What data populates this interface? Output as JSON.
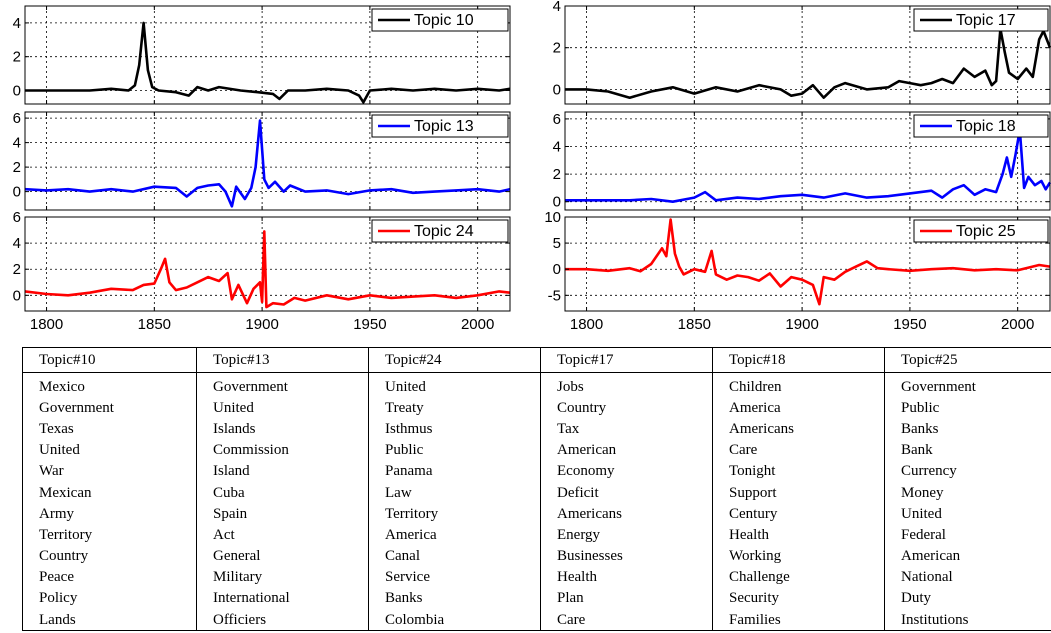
{
  "x_tick_labels": [
    "1800",
    "1850",
    "1900",
    "1950",
    "2000"
  ],
  "chart_data": [
    {
      "type": "line",
      "series": [
        {
          "name": "Topic 10",
          "color": "#000000",
          "points": [
            [
              1790,
              0
            ],
            [
              1800,
              0
            ],
            [
              1810,
              0
            ],
            [
              1820,
              0
            ],
            [
              1830,
              0.1
            ],
            [
              1838,
              0
            ],
            [
              1841,
              0.3
            ],
            [
              1843,
              1.5
            ],
            [
              1845,
              4.0
            ],
            [
              1847,
              1.2
            ],
            [
              1849,
              0.2
            ],
            [
              1852,
              0
            ],
            [
              1860,
              -0.1
            ],
            [
              1866,
              -0.3
            ],
            [
              1870,
              0.2
            ],
            [
              1875,
              0
            ],
            [
              1880,
              0.2
            ],
            [
              1890,
              0
            ],
            [
              1898,
              -0.1
            ],
            [
              1905,
              -0.2
            ],
            [
              1908,
              -0.5
            ],
            [
              1912,
              0
            ],
            [
              1920,
              0
            ],
            [
              1930,
              0.1
            ],
            [
              1940,
              0
            ],
            [
              1945,
              -0.3
            ],
            [
              1947,
              -0.7
            ],
            [
              1950,
              0
            ],
            [
              1960,
              0.1
            ],
            [
              1970,
              0
            ],
            [
              1980,
              0.1
            ],
            [
              1990,
              0
            ],
            [
              2000,
              0.1
            ],
            [
              2010,
              0
            ],
            [
              2015,
              0.1
            ]
          ]
        }
      ],
      "yticks": [
        0,
        2,
        4
      ],
      "ylim": [
        -0.8,
        5.0
      ],
      "xlim": [
        1790,
        2015
      ]
    },
    {
      "type": "line",
      "series": [
        {
          "name": "Topic 13",
          "color": "#0000ff",
          "points": [
            [
              1790,
              0.2
            ],
            [
              1800,
              0.1
            ],
            [
              1810,
              0.2
            ],
            [
              1820,
              0
            ],
            [
              1830,
              0.2
            ],
            [
              1840,
              0
            ],
            [
              1850,
              0.4
            ],
            [
              1860,
              0.3
            ],
            [
              1865,
              -0.4
            ],
            [
              1870,
              0.3
            ],
            [
              1875,
              0.5
            ],
            [
              1880,
              0.6
            ],
            [
              1883,
              0
            ],
            [
              1886,
              -1.2
            ],
            [
              1888,
              0.4
            ],
            [
              1892,
              -0.6
            ],
            [
              1895,
              0.3
            ],
            [
              1897,
              2.0
            ],
            [
              1899,
              5.8
            ],
            [
              1901,
              1.0
            ],
            [
              1903,
              0.3
            ],
            [
              1906,
              0.8
            ],
            [
              1910,
              0
            ],
            [
              1913,
              0.5
            ],
            [
              1920,
              0
            ],
            [
              1930,
              0.1
            ],
            [
              1940,
              -0.2
            ],
            [
              1950,
              0.1
            ],
            [
              1960,
              0.2
            ],
            [
              1970,
              -0.1
            ],
            [
              1980,
              0
            ],
            [
              1990,
              0.1
            ],
            [
              2000,
              0.2
            ],
            [
              2010,
              0
            ],
            [
              2015,
              0.2
            ]
          ]
        }
      ],
      "yticks": [
        0,
        2,
        4,
        6
      ],
      "ylim": [
        -1.5,
        6.5
      ],
      "xlim": [
        1790,
        2015
      ]
    },
    {
      "type": "line",
      "series": [
        {
          "name": "Topic 24",
          "color": "#ff0000",
          "points": [
            [
              1790,
              0.3
            ],
            [
              1800,
              0.1
            ],
            [
              1810,
              0
            ],
            [
              1820,
              0.2
            ],
            [
              1830,
              0.5
            ],
            [
              1840,
              0.4
            ],
            [
              1845,
              0.8
            ],
            [
              1850,
              0.9
            ],
            [
              1853,
              2.0
            ],
            [
              1855,
              2.8
            ],
            [
              1857,
              1.0
            ],
            [
              1860,
              0.4
            ],
            [
              1865,
              0.6
            ],
            [
              1870,
              1.0
            ],
            [
              1875,
              1.4
            ],
            [
              1880,
              1.1
            ],
            [
              1884,
              1.7
            ],
            [
              1886,
              -0.3
            ],
            [
              1889,
              0.8
            ],
            [
              1893,
              -0.6
            ],
            [
              1896,
              0.5
            ],
            [
              1899,
              1.0
            ],
            [
              1900,
              -0.5
            ],
            [
              1901,
              4.9
            ],
            [
              1902,
              -0.9
            ],
            [
              1905,
              -0.6
            ],
            [
              1910,
              -0.7
            ],
            [
              1915,
              -0.2
            ],
            [
              1920,
              -0.4
            ],
            [
              1930,
              0
            ],
            [
              1940,
              -0.3
            ],
            [
              1950,
              0
            ],
            [
              1960,
              -0.2
            ],
            [
              1970,
              -0.1
            ],
            [
              1980,
              0
            ],
            [
              1990,
              -0.2
            ],
            [
              2000,
              0
            ],
            [
              2010,
              0.3
            ],
            [
              2015,
              0.2
            ]
          ]
        }
      ],
      "yticks": [
        0,
        2,
        4,
        6
      ],
      "ylim": [
        -1.2,
        6.0
      ],
      "xlim": [
        1790,
        2015
      ]
    },
    {
      "type": "line",
      "series": [
        {
          "name": "Topic 17",
          "color": "#000000",
          "points": [
            [
              1790,
              0
            ],
            [
              1800,
              0
            ],
            [
              1810,
              -0.1
            ],
            [
              1820,
              -0.4
            ],
            [
              1830,
              -0.1
            ],
            [
              1840,
              0.1
            ],
            [
              1850,
              -0.2
            ],
            [
              1860,
              0.1
            ],
            [
              1870,
              -0.1
            ],
            [
              1880,
              0.2
            ],
            [
              1890,
              0
            ],
            [
              1895,
              -0.3
            ],
            [
              1900,
              -0.2
            ],
            [
              1905,
              0.2
            ],
            [
              1910,
              -0.4
            ],
            [
              1915,
              0.1
            ],
            [
              1920,
              0.3
            ],
            [
              1930,
              0
            ],
            [
              1940,
              0.1
            ],
            [
              1945,
              0.4
            ],
            [
              1950,
              0.3
            ],
            [
              1955,
              0.2
            ],
            [
              1960,
              0.3
            ],
            [
              1965,
              0.5
            ],
            [
              1970,
              0.3
            ],
            [
              1975,
              1.0
            ],
            [
              1980,
              0.6
            ],
            [
              1985,
              0.9
            ],
            [
              1988,
              0.2
            ],
            [
              1990,
              0.4
            ],
            [
              1992,
              2.9
            ],
            [
              1994,
              1.8
            ],
            [
              1996,
              0.8
            ],
            [
              2000,
              0.5
            ],
            [
              2004,
              1.0
            ],
            [
              2007,
              0.6
            ],
            [
              2010,
              2.4
            ],
            [
              2012,
              2.8
            ],
            [
              2015,
              2.0
            ]
          ]
        }
      ],
      "yticks": [
        0,
        2,
        4
      ],
      "ylim": [
        -0.7,
        4.0
      ],
      "xlim": [
        1790,
        2015
      ]
    },
    {
      "type": "line",
      "series": [
        {
          "name": "Topic 18",
          "color": "#0000ff",
          "points": [
            [
              1790,
              0.1
            ],
            [
              1800,
              0.1
            ],
            [
              1810,
              0.1
            ],
            [
              1820,
              0.1
            ],
            [
              1830,
              0.2
            ],
            [
              1840,
              0
            ],
            [
              1850,
              0.3
            ],
            [
              1855,
              0.7
            ],
            [
              1860,
              0.1
            ],
            [
              1870,
              0.3
            ],
            [
              1880,
              0.2
            ],
            [
              1890,
              0.4
            ],
            [
              1900,
              0.5
            ],
            [
              1910,
              0.3
            ],
            [
              1920,
              0.6
            ],
            [
              1930,
              0.3
            ],
            [
              1940,
              0.4
            ],
            [
              1950,
              0.6
            ],
            [
              1960,
              0.8
            ],
            [
              1965,
              0.3
            ],
            [
              1970,
              0.9
            ],
            [
              1975,
              1.2
            ],
            [
              1980,
              0.5
            ],
            [
              1985,
              0.9
            ],
            [
              1990,
              0.7
            ],
            [
              1993,
              2.0
            ],
            [
              1995,
              3.2
            ],
            [
              1997,
              1.8
            ],
            [
              1999,
              3.4
            ],
            [
              2001,
              5.2
            ],
            [
              2003,
              1.0
            ],
            [
              2005,
              1.8
            ],
            [
              2008,
              1.2
            ],
            [
              2011,
              1.5
            ],
            [
              2013,
              0.9
            ],
            [
              2015,
              1.4
            ]
          ]
        }
      ],
      "yticks": [
        0,
        2,
        4,
        6
      ],
      "ylim": [
        -0.6,
        6.5
      ],
      "xlim": [
        1790,
        2015
      ]
    },
    {
      "type": "line",
      "series": [
        {
          "name": "Topic 25",
          "color": "#ff0000",
          "points": [
            [
              1790,
              0
            ],
            [
              1800,
              0
            ],
            [
              1810,
              -0.3
            ],
            [
              1820,
              0.2
            ],
            [
              1825,
              -0.4
            ],
            [
              1830,
              1.0
            ],
            [
              1835,
              4.0
            ],
            [
              1837,
              2.5
            ],
            [
              1839,
              9.5
            ],
            [
              1841,
              3.0
            ],
            [
              1843,
              0.5
            ],
            [
              1845,
              -1.0
            ],
            [
              1850,
              0
            ],
            [
              1855,
              -0.5
            ],
            [
              1858,
              3.5
            ],
            [
              1860,
              -1.0
            ],
            [
              1865,
              -2.0
            ],
            [
              1870,
              -1.2
            ],
            [
              1875,
              -1.5
            ],
            [
              1880,
              -2.2
            ],
            [
              1885,
              -0.8
            ],
            [
              1890,
              -3.3
            ],
            [
              1895,
              -1.5
            ],
            [
              1900,
              -2.0
            ],
            [
              1905,
              -3.0
            ],
            [
              1908,
              -6.7
            ],
            [
              1910,
              -1.5
            ],
            [
              1915,
              -2.0
            ],
            [
              1920,
              -0.5
            ],
            [
              1925,
              0.5
            ],
            [
              1930,
              1.5
            ],
            [
              1935,
              0.2
            ],
            [
              1940,
              0
            ],
            [
              1950,
              -0.3
            ],
            [
              1960,
              0
            ],
            [
              1970,
              0.2
            ],
            [
              1980,
              -0.2
            ],
            [
              1990,
              0
            ],
            [
              2000,
              -0.2
            ],
            [
              2010,
              0.8
            ],
            [
              2015,
              0.5
            ]
          ]
        }
      ],
      "yticks": [
        -5,
        0,
        5,
        10
      ],
      "ylim": [
        -8,
        10
      ],
      "xlim": [
        1790,
        2015
      ]
    }
  ],
  "table": {
    "headers": [
      "Topic#10",
      "Topic#13",
      "Topic#24",
      "Topic#17",
      "Topic#18",
      "Topic#25"
    ],
    "rows": [
      [
        "Mexico",
        "Government",
        "United",
        "Jobs",
        "Children",
        "Government"
      ],
      [
        "Government",
        "United",
        "Treaty",
        "Country",
        "America",
        "Public"
      ],
      [
        "Texas",
        "Islands",
        "Isthmus",
        "Tax",
        "Americans",
        "Banks"
      ],
      [
        "United",
        "Commission",
        "Public",
        "American",
        "Care",
        "Bank"
      ],
      [
        "War",
        "Island",
        "Panama",
        "Economy",
        "Tonight",
        "Currency"
      ],
      [
        "Mexican",
        "Cuba",
        "Law",
        "Deficit",
        "Support",
        "Money"
      ],
      [
        "Army",
        "Spain",
        "Territory",
        "Americans",
        "Century",
        "United"
      ],
      [
        "Territory",
        "Act",
        "America",
        "Energy",
        "Health",
        "Federal"
      ],
      [
        "Country",
        "General",
        "Canal",
        "Businesses",
        "Working",
        "American"
      ],
      [
        "Peace",
        "Military",
        "Service",
        "Health",
        "Challenge",
        "National"
      ],
      [
        "Policy",
        "International",
        "Banks",
        "Plan",
        "Security",
        "Duty"
      ],
      [
        "Lands",
        "Officiers",
        "Colombia",
        "Care",
        "Families",
        "Institutions"
      ]
    ]
  }
}
